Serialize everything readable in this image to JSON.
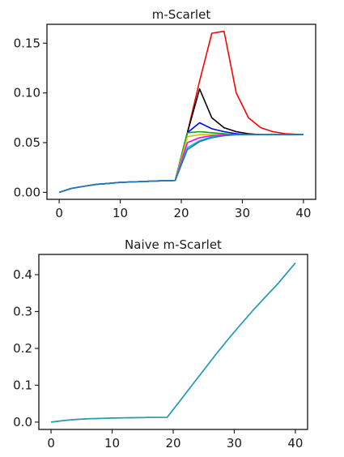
{
  "chart_data": [
    {
      "type": "line",
      "title": "m-Scarlet",
      "xlabel": "",
      "ylabel": "",
      "xlim": [
        -2,
        42
      ],
      "ylim": [
        -0.007,
        0.169
      ],
      "xticks": [
        0,
        10,
        20,
        30,
        40
      ],
      "xtick_labels": [
        "0",
        "10",
        "20",
        "30",
        "40"
      ],
      "yticks": [
        0.0,
        0.05,
        0.1,
        0.15
      ],
      "ytick_labels": [
        "0.00",
        "0.05",
        "0.10",
        "0.15"
      ],
      "grid": false,
      "legend": "none",
      "x": [
        0,
        2,
        4,
        6,
        8,
        10,
        12,
        14,
        16,
        19,
        21,
        23,
        25,
        27,
        29,
        31,
        33,
        35,
        37,
        40
      ],
      "series": [
        {
          "color": "#ff0000",
          "values": [
            0.0,
            0.004,
            0.006,
            0.008,
            0.009,
            0.01,
            0.0105,
            0.011,
            0.0115,
            0.012,
            0.06,
            0.112,
            0.16,
            0.162,
            0.1,
            0.075,
            0.065,
            0.061,
            0.059,
            0.058
          ]
        },
        {
          "color": "#000000",
          "values": [
            0.0,
            0.004,
            0.006,
            0.008,
            0.009,
            0.01,
            0.0105,
            0.011,
            0.0115,
            0.012,
            0.06,
            0.104,
            0.075,
            0.065,
            0.061,
            0.059,
            0.058,
            0.058,
            0.058,
            0.058
          ]
        },
        {
          "color": "#0000ff",
          "values": [
            0.0,
            0.004,
            0.006,
            0.008,
            0.009,
            0.01,
            0.0105,
            0.011,
            0.0115,
            0.012,
            0.06,
            0.07,
            0.064,
            0.061,
            0.059,
            0.058,
            0.058,
            0.058,
            0.058,
            0.058
          ]
        },
        {
          "color": "#00aa00",
          "values": [
            0.0,
            0.004,
            0.006,
            0.008,
            0.009,
            0.01,
            0.0105,
            0.011,
            0.0115,
            0.012,
            0.06,
            0.061,
            0.06,
            0.059,
            0.058,
            0.058,
            0.058,
            0.058,
            0.058,
            0.058
          ]
        },
        {
          "color": "#c8c800",
          "values": [
            0.0,
            0.004,
            0.006,
            0.008,
            0.009,
            0.01,
            0.0105,
            0.011,
            0.0115,
            0.012,
            0.056,
            0.058,
            0.058,
            0.058,
            0.058,
            0.058,
            0.058,
            0.058,
            0.058,
            0.058
          ]
        },
        {
          "color": "#ff00ff",
          "values": [
            0.0,
            0.004,
            0.006,
            0.008,
            0.009,
            0.01,
            0.0105,
            0.011,
            0.0115,
            0.012,
            0.05,
            0.055,
            0.057,
            0.058,
            0.058,
            0.058,
            0.058,
            0.058,
            0.058,
            0.058
          ]
        },
        {
          "color": "#00c8c8",
          "values": [
            0.0,
            0.004,
            0.006,
            0.008,
            0.009,
            0.01,
            0.0105,
            0.011,
            0.0115,
            0.012,
            0.045,
            0.052,
            0.056,
            0.057,
            0.058,
            0.058,
            0.058,
            0.058,
            0.058,
            0.058
          ]
        },
        {
          "color": "#1f77b4",
          "values": [
            0.0,
            0.004,
            0.006,
            0.008,
            0.009,
            0.01,
            0.0105,
            0.011,
            0.0115,
            0.012,
            0.043,
            0.051,
            0.055,
            0.057,
            0.058,
            0.058,
            0.058,
            0.058,
            0.058,
            0.058
          ]
        }
      ]
    },
    {
      "type": "line",
      "title": "Naive m-Scarlet",
      "xlabel": "",
      "ylabel": "",
      "xlim": [
        -2,
        42
      ],
      "ylim": [
        -0.02,
        0.455
      ],
      "xticks": [
        0,
        10,
        20,
        30,
        40
      ],
      "xtick_labels": [
        "0",
        "10",
        "20",
        "30",
        "40"
      ],
      "yticks": [
        0.0,
        0.1,
        0.2,
        0.3,
        0.4
      ],
      "ytick_labels": [
        "0.0",
        "0.1",
        "0.2",
        "0.3",
        "0.4"
      ],
      "grid": false,
      "legend": "none",
      "x": [
        0,
        2,
        4,
        6,
        8,
        10,
        12,
        14,
        16,
        19,
        21,
        23,
        25,
        27,
        29,
        31,
        33,
        35,
        37,
        40
      ],
      "series": [
        {
          "color": "#8a8a8a",
          "values": [
            0.0,
            0.004,
            0.007,
            0.009,
            0.01,
            0.011,
            0.0115,
            0.012,
            0.0125,
            0.013,
            0.055,
            0.098,
            0.141,
            0.184,
            0.225,
            0.264,
            0.302,
            0.338,
            0.373,
            0.432
          ]
        },
        {
          "color": "#1f9fb4",
          "values": [
            0.0,
            0.004,
            0.007,
            0.009,
            0.01,
            0.011,
            0.0115,
            0.012,
            0.0125,
            0.013,
            0.055,
            0.098,
            0.141,
            0.184,
            0.225,
            0.264,
            0.302,
            0.338,
            0.373,
            0.432
          ]
        }
      ]
    }
  ]
}
